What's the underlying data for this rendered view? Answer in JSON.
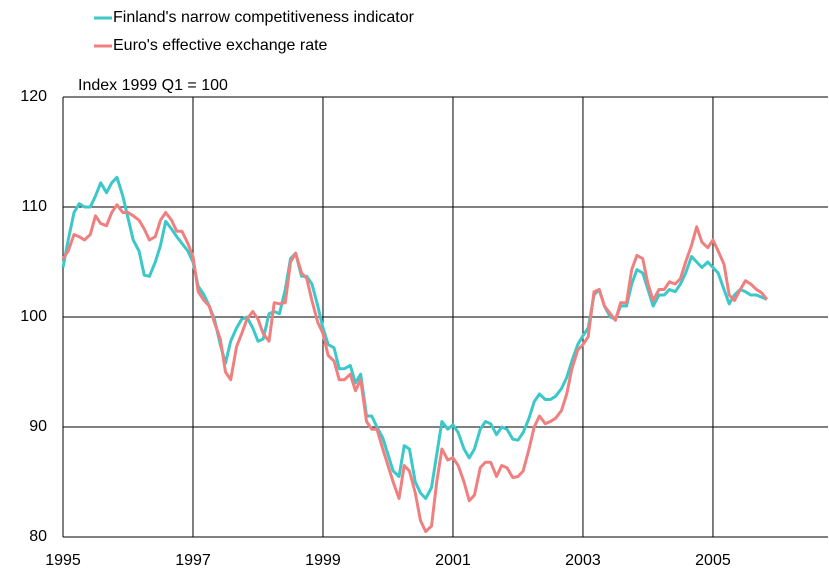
{
  "chart_data": {
    "type": "line",
    "annotation": "Index 1999 Q1 = 100",
    "x": [
      1995,
      1995.08,
      1995.17,
      1995.25,
      1995.33,
      1995.42,
      1995.5,
      1995.58,
      1995.67,
      1995.75,
      1995.83,
      1995.92,
      1996,
      1996.08,
      1996.17,
      1996.25,
      1996.33,
      1996.42,
      1996.5,
      1996.58,
      1996.67,
      1996.75,
      1996.83,
      1996.92,
      1997,
      1997.08,
      1997.17,
      1997.25,
      1997.33,
      1997.42,
      1997.5,
      1997.58,
      1997.67,
      1997.75,
      1997.83,
      1997.92,
      1998,
      1998.08,
      1998.17,
      1998.25,
      1998.33,
      1998.42,
      1998.5,
      1998.58,
      1998.67,
      1998.75,
      1998.83,
      1998.92,
      1999,
      1999.08,
      1999.17,
      1999.25,
      1999.33,
      1999.42,
      1999.5,
      1999.58,
      1999.67,
      1999.75,
      1999.83,
      1999.92,
      2000,
      2000.08,
      2000.17,
      2000.25,
      2000.33,
      2000.42,
      2000.5,
      2000.58,
      2000.67,
      2000.75,
      2000.83,
      2000.92,
      2001,
      2001.08,
      2001.17,
      2001.25,
      2001.33,
      2001.42,
      2001.5,
      2001.58,
      2001.67,
      2001.75,
      2001.83,
      2001.92,
      2002,
      2002.08,
      2002.17,
      2002.25,
      2002.33,
      2002.42,
      2002.5,
      2002.58,
      2002.67,
      2002.75,
      2002.83,
      2002.92,
      2003,
      2003.08,
      2003.17,
      2003.25,
      2003.33,
      2003.42,
      2003.5,
      2003.58,
      2003.67,
      2003.75,
      2003.83,
      2003.92,
      2004,
      2004.08,
      2004.17,
      2004.25,
      2004.33,
      2004.42,
      2004.5,
      2004.58,
      2004.67,
      2004.75,
      2004.83,
      2004.92,
      2005,
      2005.08,
      2005.17,
      2005.25,
      2005.33,
      2005.42,
      2005.5,
      2005.58,
      2005.67,
      2005.75,
      2005.83
    ],
    "series": [
      {
        "name": "Finland's narrow competitiveness indicator",
        "color": "#3cc8c8",
        "values": [
          104.5,
          107,
          109.5,
          110.3,
          110,
          110,
          111,
          112.2,
          111.3,
          112.2,
          112.7,
          111,
          109,
          107,
          106,
          103.8,
          103.7,
          105,
          106.5,
          108.7,
          108,
          107.3,
          106.7,
          106,
          105,
          102.8,
          102,
          101,
          99.8,
          97.5,
          95.8,
          97.8,
          99,
          99.8,
          100,
          99,
          97.8,
          98,
          100.3,
          100.5,
          100.3,
          102.5,
          105.3,
          105.8,
          103.7,
          103.7,
          103,
          101,
          99,
          97.5,
          97.2,
          95.3,
          95.3,
          95.6,
          94,
          94.8,
          91,
          91,
          90,
          89,
          87.5,
          86,
          85.5,
          88.3,
          88,
          85,
          84,
          83.5,
          84.5,
          87.5,
          90.5,
          89.8,
          90.2,
          89.5,
          88,
          87.2,
          88,
          89.8,
          90.5,
          90.3,
          89.3,
          90,
          89.8,
          88.9,
          88.8,
          89.5,
          90.8,
          92.3,
          93,
          92.5,
          92.5,
          92.8,
          93.5,
          94.5,
          96,
          97.5,
          98.3,
          99,
          102,
          102.5,
          101,
          100,
          99.8,
          101,
          101,
          103,
          104.3,
          104,
          102.5,
          101,
          102,
          102,
          102.5,
          102.3,
          103,
          104,
          105.5,
          105,
          104.5,
          105,
          104.5,
          104,
          102.5,
          101.2,
          102,
          102.5,
          102.3,
          102,
          102,
          101.8,
          101.6
        ]
      },
      {
        "name": "Euro's effective exchange rate",
        "color": "#f08080",
        "values": [
          105.3,
          106,
          107.5,
          107.3,
          107,
          107.5,
          109.2,
          108.5,
          108.3,
          109.5,
          110.2,
          109.5,
          109.5,
          109.2,
          108.8,
          108,
          107,
          107.3,
          108.8,
          109.5,
          108.8,
          107.8,
          107.8,
          106.7,
          105.5,
          102.3,
          101.5,
          101,
          99.5,
          98,
          95,
          94.3,
          97.3,
          98.5,
          99.8,
          100.5,
          99.8,
          98.5,
          97.8,
          101.3,
          101.2,
          101.3,
          105,
          105.8,
          104,
          103.5,
          101.5,
          99.5,
          98.5,
          96.5,
          96,
          94.3,
          94.3,
          94.8,
          93.3,
          94.3,
          90.5,
          89.8,
          89.8,
          88,
          86.5,
          85,
          83.5,
          86.5,
          86,
          84,
          81.5,
          80.5,
          81,
          85,
          88,
          87,
          87.2,
          86.5,
          85,
          83.3,
          83.8,
          86.3,
          86.8,
          86.8,
          85.5,
          86.5,
          86.3,
          85.4,
          85.5,
          86,
          88,
          90,
          91,
          90.3,
          90.5,
          90.8,
          91.5,
          93,
          95.3,
          97,
          97.5,
          98.2,
          102.3,
          102.5,
          101,
          100.3,
          99.7,
          101.3,
          101.3,
          104.3,
          105.6,
          105.3,
          103,
          101.5,
          102.5,
          102.5,
          103.2,
          103,
          103.5,
          105,
          106.5,
          108.2,
          106.8,
          106.3,
          107,
          106,
          104.8,
          102,
          101.5,
          102.5,
          103.3,
          103,
          102.5,
          102.2,
          101.6
        ]
      }
    ],
    "xlim": [
      1995,
      2006.77
    ],
    "xticks": [
      1995,
      1997,
      1999,
      2001,
      2003,
      2005
    ],
    "ylim": [
      80,
      120
    ],
    "yticks": [
      80,
      90,
      100,
      110,
      120
    ],
    "grid": true
  }
}
